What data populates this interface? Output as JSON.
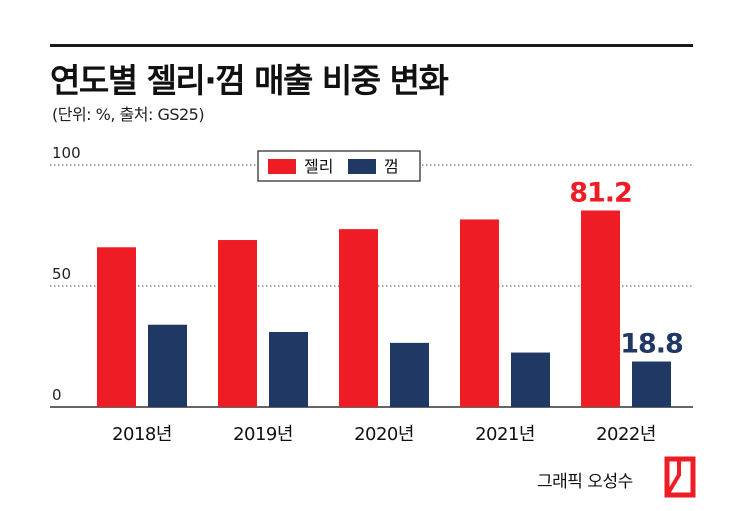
{
  "header": {
    "title": "연도별 젤리·껌 매출 비중 변화",
    "subtitle": "(단위: %, 출처: GS25)"
  },
  "footer": {
    "credit": "그래픽 오성수"
  },
  "colors": {
    "jelly": "#ee1c25",
    "gum": "#1f3864",
    "grid": "#555555",
    "text": "#111111"
  },
  "chart_data": {
    "type": "bar",
    "categories": [
      "2018년",
      "2019년",
      "2020년",
      "2021년",
      "2022년"
    ],
    "series": [
      {
        "name": "젤리",
        "values": [
          66.0,
          69.0,
          73.5,
          77.5,
          81.2
        ],
        "color": "#ee1c25"
      },
      {
        "name": "껌",
        "values": [
          34.0,
          31.0,
          26.5,
          22.5,
          18.8
        ],
        "color": "#1f3864"
      }
    ],
    "yticks": [
      0,
      50,
      100
    ],
    "ylim": [
      0,
      100
    ],
    "data_labels": [
      {
        "series": 0,
        "index": 4,
        "text": "81.2"
      },
      {
        "series": 1,
        "index": 4,
        "text": "18.8"
      }
    ],
    "grid": true,
    "legend": "top-center",
    "title": "",
    "xlabel": "",
    "ylabel": ""
  }
}
